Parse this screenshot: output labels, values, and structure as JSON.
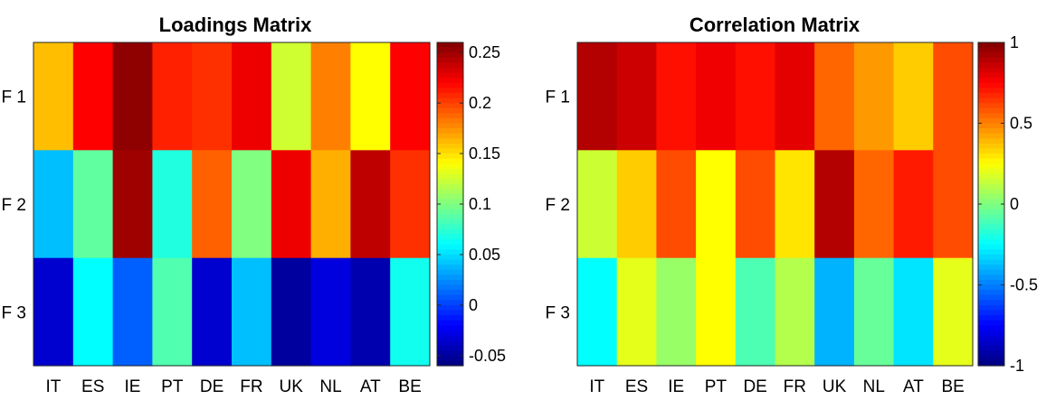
{
  "chart_data": [
    {
      "type": "heatmap",
      "title": "Loadings Matrix",
      "xlabel": "",
      "ylabel": "",
      "x_categories": [
        "IT",
        "ES",
        "IE",
        "PT",
        "DE",
        "FR",
        "UK",
        "NL",
        "AT",
        "BE"
      ],
      "y_categories": [
        "F 1",
        "F 2",
        "F 3"
      ],
      "values": [
        [
          0.16,
          0.22,
          0.255,
          0.21,
          0.205,
          0.225,
          0.125,
          0.18,
          0.14,
          0.22
        ],
        [
          0.04,
          0.09,
          0.25,
          0.07,
          0.19,
          0.1,
          0.225,
          0.165,
          0.24,
          0.205
        ],
        [
          -0.035,
          0.06,
          0.01,
          0.085,
          -0.035,
          0.04,
          -0.05,
          -0.03,
          -0.045,
          0.065
        ]
      ],
      "colorbar": {
        "range": [
          -0.06,
          0.26
        ],
        "ticks": [
          "0.25",
          "0.2",
          "0.15",
          "0.1",
          "0.05",
          "0",
          "-0.05"
        ],
        "colormap": "jet"
      }
    },
    {
      "type": "heatmap",
      "title": "Correlation Matrix",
      "xlabel": "",
      "ylabel": "",
      "x_categories": [
        "IT",
        "ES",
        "IE",
        "PT",
        "DE",
        "FR",
        "UK",
        "NL",
        "AT",
        "BE"
      ],
      "y_categories": [
        "F 1",
        "F 2",
        "F 3"
      ],
      "values": [
        [
          0.9,
          0.85,
          0.72,
          0.78,
          0.72,
          0.8,
          0.55,
          0.45,
          0.35,
          0.6
        ],
        [
          0.15,
          0.35,
          0.6,
          0.25,
          0.6,
          0.3,
          0.9,
          0.55,
          0.7,
          0.6
        ],
        [
          -0.25,
          0.2,
          0.05,
          0.25,
          -0.1,
          0.1,
          -0.4,
          -0.05,
          -0.3,
          0.2
        ]
      ],
      "colorbar": {
        "range": [
          -1,
          1
        ],
        "ticks": [
          "1",
          "0.5",
          "0",
          "-0.5",
          "-1"
        ],
        "colormap": "jet"
      }
    }
  ]
}
